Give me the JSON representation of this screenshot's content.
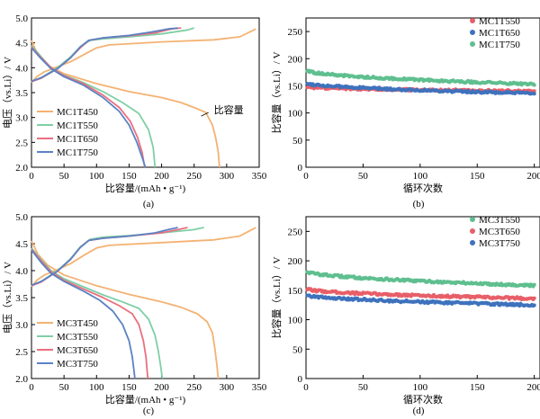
{
  "chart_data": [
    {
      "panel": "a",
      "type": "line",
      "caption": "(a)",
      "xlabel": "比容量/(mAh • g⁻¹)",
      "ylabel": "电压（vs.Li）/ V",
      "xlim": [
        0,
        350
      ],
      "ylim": [
        2.0,
        5.0
      ],
      "xticks": [
        0,
        50,
        100,
        150,
        200,
        250,
        300,
        350
      ],
      "yticks": [
        2.0,
        2.5,
        3.0,
        3.5,
        4.0,
        4.5,
        5.0
      ],
      "legend_position": "bottom-left",
      "annotation": "比容量",
      "series": [
        {
          "name": "MC1T450",
          "color": "#f4b273",
          "charge": [
            [
              0,
              3.7
            ],
            [
              8,
              3.82
            ],
            [
              20,
              3.92
            ],
            [
              40,
              4.02
            ],
            [
              60,
              4.12
            ],
            [
              80,
              4.26
            ],
            [
              100,
              4.4
            ],
            [
              120,
              4.46
            ],
            [
              200,
              4.52
            ],
            [
              280,
              4.56
            ],
            [
              320,
              4.62
            ],
            [
              345,
              4.78
            ]
          ],
          "discharge": [
            [
              0,
              4.55
            ],
            [
              10,
              4.25
            ],
            [
              25,
              4.05
            ],
            [
              50,
              3.88
            ],
            [
              100,
              3.68
            ],
            [
              150,
              3.52
            ],
            [
              200,
              3.4
            ],
            [
              230,
              3.3
            ],
            [
              250,
              3.2
            ],
            [
              268,
              3.1
            ],
            [
              278,
              2.85
            ],
            [
              283,
              2.6
            ],
            [
              287,
              2.3
            ],
            [
              289,
              2.0
            ]
          ]
        },
        {
          "name": "MC1T550",
          "color": "#7fcfa6",
          "charge": [
            [
              0,
              3.72
            ],
            [
              15,
              3.8
            ],
            [
              40,
              4.0
            ],
            [
              60,
              4.22
            ],
            [
              75,
              4.42
            ],
            [
              90,
              4.55
            ],
            [
              110,
              4.58
            ],
            [
              150,
              4.62
            ],
            [
              200,
              4.68
            ],
            [
              240,
              4.76
            ],
            [
              250,
              4.8
            ]
          ],
          "discharge": [
            [
              0,
              4.45
            ],
            [
              15,
              4.22
            ],
            [
              30,
              4.0
            ],
            [
              50,
              3.85
            ],
            [
              80,
              3.7
            ],
            [
              110,
              3.52
            ],
            [
              140,
              3.3
            ],
            [
              165,
              3.08
            ],
            [
              180,
              2.75
            ],
            [
              187,
              2.4
            ],
            [
              190,
              2.0
            ]
          ]
        },
        {
          "name": "MC1T650",
          "color": "#e8707f",
          "charge": [
            [
              0,
              3.72
            ],
            [
              15,
              3.79
            ],
            [
              40,
              3.98
            ],
            [
              60,
              4.2
            ],
            [
              75,
              4.4
            ],
            [
              88,
              4.55
            ],
            [
              110,
              4.6
            ],
            [
              150,
              4.64
            ],
            [
              190,
              4.7
            ],
            [
              215,
              4.78
            ],
            [
              230,
              4.8
            ]
          ],
          "discharge": [
            [
              0,
              4.42
            ],
            [
              15,
              4.2
            ],
            [
              30,
              4.0
            ],
            [
              50,
              3.84
            ],
            [
              80,
              3.68
            ],
            [
              110,
              3.45
            ],
            [
              135,
              3.2
            ],
            [
              152,
              2.92
            ],
            [
              163,
              2.6
            ],
            [
              170,
              2.3
            ],
            [
              174,
              2.0
            ]
          ]
        },
        {
          "name": "MC1T750",
          "color": "#5b82c4",
          "charge": [
            [
              0,
              3.73
            ],
            [
              15,
              3.8
            ],
            [
              40,
              3.98
            ],
            [
              60,
              4.2
            ],
            [
              75,
              4.42
            ],
            [
              88,
              4.55
            ],
            [
              110,
              4.6
            ],
            [
              150,
              4.65
            ],
            [
              185,
              4.72
            ],
            [
              210,
              4.78
            ],
            [
              225,
              4.8
            ]
          ],
          "discharge": [
            [
              0,
              4.4
            ],
            [
              15,
              4.18
            ],
            [
              30,
              3.98
            ],
            [
              50,
              3.82
            ],
            [
              80,
              3.65
            ],
            [
              110,
              3.4
            ],
            [
              135,
              3.12
            ],
            [
              150,
              2.85
            ],
            [
              162,
              2.5
            ],
            [
              170,
              2.2
            ],
            [
              175,
              2.0
            ]
          ]
        }
      ]
    },
    {
      "panel": "b",
      "type": "scatter",
      "caption": "(b)",
      "xlabel": "循环次数",
      "ylabel": "比容量（vs.Li）/ V",
      "xlim": [
        0,
        205
      ],
      "ylim": [
        0,
        275
      ],
      "xticks": [
        0,
        50,
        100,
        150,
        200
      ],
      "yticks": [
        0,
        50,
        100,
        150,
        200,
        250
      ],
      "legend_position": "top-right",
      "series": [
        {
          "name": "MC1T550",
          "color": "#e85f68",
          "start": 148,
          "end": 140
        },
        {
          "name": "MC1T650",
          "color": "#3f72bd",
          "start": 155,
          "end": 136
        },
        {
          "name": "MC1T750",
          "color": "#5fbf8f",
          "start": 178,
          "end": 153
        }
      ]
    },
    {
      "panel": "c",
      "type": "line",
      "caption": "(c)",
      "xlabel": "比容量/(mAh • g⁻¹)",
      "ylabel": "电压（vs.Li）/ V",
      "xlim": [
        0,
        350
      ],
      "ylim": [
        2.0,
        5.0
      ],
      "xticks": [
        0,
        50,
        100,
        150,
        200,
        250,
        300,
        350
      ],
      "yticks": [
        2.0,
        2.5,
        3.0,
        3.5,
        4.0,
        4.5,
        5.0
      ],
      "legend_position": "bottom-left",
      "series": [
        {
          "name": "MC3T450",
          "color": "#f4b273",
          "charge": [
            [
              0,
              3.7
            ],
            [
              8,
              3.82
            ],
            [
              20,
              3.92
            ],
            [
              40,
              4.02
            ],
            [
              60,
              4.13
            ],
            [
              80,
              4.28
            ],
            [
              100,
              4.42
            ],
            [
              120,
              4.47
            ],
            [
              200,
              4.52
            ],
            [
              280,
              4.57
            ],
            [
              320,
              4.64
            ],
            [
              345,
              4.8
            ]
          ],
          "discharge": [
            [
              0,
              4.55
            ],
            [
              10,
              4.3
            ],
            [
              25,
              4.1
            ],
            [
              50,
              3.92
            ],
            [
              100,
              3.72
            ],
            [
              150,
              3.56
            ],
            [
              200,
              3.42
            ],
            [
              230,
              3.32
            ],
            [
              255,
              3.2
            ],
            [
              270,
              3.05
            ],
            [
              278,
              2.85
            ],
            [
              282,
              2.55
            ],
            [
              285,
              2.25
            ],
            [
              287,
              2.0
            ]
          ]
        },
        {
          "name": "MC3T550",
          "color": "#7fcfa6",
          "charge": [
            [
              0,
              3.72
            ],
            [
              15,
              3.8
            ],
            [
              40,
              4.0
            ],
            [
              60,
              4.22
            ],
            [
              75,
              4.44
            ],
            [
              90,
              4.58
            ],
            [
              110,
              4.62
            ],
            [
              150,
              4.65
            ],
            [
              200,
              4.7
            ],
            [
              250,
              4.76
            ],
            [
              265,
              4.8
            ]
          ],
          "discharge": [
            [
              0,
              4.42
            ],
            [
              15,
              4.2
            ],
            [
              30,
              4.0
            ],
            [
              50,
              3.85
            ],
            [
              80,
              3.7
            ],
            [
              110,
              3.55
            ],
            [
              140,
              3.42
            ],
            [
              165,
              3.3
            ],
            [
              180,
              3.1
            ],
            [
              190,
              2.8
            ],
            [
              195,
              2.5
            ],
            [
              199,
              2.2
            ],
            [
              201,
              2.0
            ]
          ]
        },
        {
          "name": "MC3T650",
          "color": "#e8707f",
          "charge": [
            [
              0,
              3.72
            ],
            [
              15,
              3.79
            ],
            [
              40,
              3.99
            ],
            [
              60,
              4.21
            ],
            [
              75,
              4.43
            ],
            [
              88,
              4.56
            ],
            [
              110,
              4.6
            ],
            [
              150,
              4.64
            ],
            [
              200,
              4.7
            ],
            [
              225,
              4.76
            ],
            [
              240,
              4.8
            ]
          ],
          "discharge": [
            [
              0,
              4.4
            ],
            [
              15,
              4.18
            ],
            [
              30,
              3.98
            ],
            [
              50,
              3.82
            ],
            [
              80,
              3.66
            ],
            [
              110,
              3.5
            ],
            [
              135,
              3.35
            ],
            [
              155,
              3.2
            ],
            [
              165,
              3.0
            ],
            [
              172,
              2.7
            ],
            [
              176,
              2.4
            ],
            [
              178,
              2.1
            ],
            [
              179,
              2.0
            ]
          ]
        },
        {
          "name": "MC3T750",
          "color": "#5b82c4",
          "charge": [
            [
              0,
              3.73
            ],
            [
              15,
              3.8
            ],
            [
              40,
              3.99
            ],
            [
              60,
              4.21
            ],
            [
              75,
              4.43
            ],
            [
              88,
              4.56
            ],
            [
              110,
              4.6
            ],
            [
              150,
              4.64
            ],
            [
              190,
              4.7
            ],
            [
              210,
              4.76
            ],
            [
              225,
              4.8
            ]
          ],
          "discharge": [
            [
              0,
              4.38
            ],
            [
              15,
              4.15
            ],
            [
              30,
              3.95
            ],
            [
              50,
              3.8
            ],
            [
              80,
              3.62
            ],
            [
              105,
              3.45
            ],
            [
              125,
              3.25
            ],
            [
              140,
              3.0
            ],
            [
              150,
              2.7
            ],
            [
              155,
              2.4
            ],
            [
              158,
              2.1
            ],
            [
              159,
              2.0
            ]
          ]
        }
      ]
    },
    {
      "panel": "d",
      "type": "scatter",
      "caption": "(d)",
      "xlabel": "循环次数",
      "ylabel": "比容量（vs.Li）/ V",
      "xlim": [
        0,
        205
      ],
      "ylim": [
        0,
        275
      ],
      "xticks": [
        0,
        50,
        100,
        150,
        200
      ],
      "yticks": [
        0,
        50,
        100,
        150,
        200,
        250
      ],
      "legend_position": "top-right",
      "series": [
        {
          "name": "MC3T550",
          "color": "#5fbf8f",
          "start": 182,
          "end": 158
        },
        {
          "name": "MC3T650",
          "color": "#e85f68",
          "start": 152,
          "end": 136
        },
        {
          "name": "MC3T750",
          "color": "#3f72bd",
          "start": 142,
          "end": 125
        }
      ]
    }
  ]
}
